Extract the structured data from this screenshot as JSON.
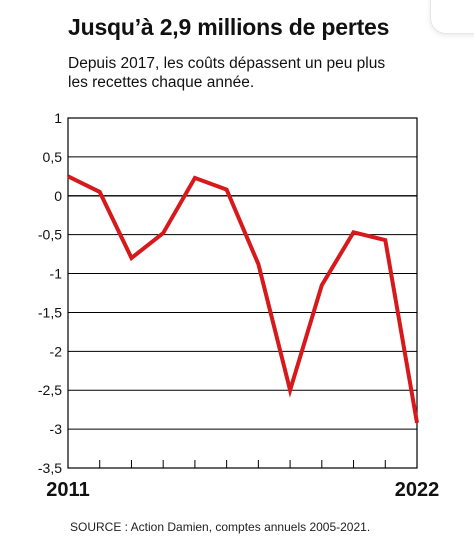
{
  "title": "Jusqu’à 2,9 millions de pertes",
  "subtitle": "Depuis 2017, les coûts dépassent un peu plus les recettes chaque année.",
  "source": "SOURCE : Action Damien, comptes annuels 2005-2021.",
  "colors": {
    "line": "#d7191c",
    "grid": "#000000",
    "text": "#111111"
  },
  "chart_data": {
    "type": "line",
    "title": "Jusqu’à 2,9 millions de pertes",
    "subtitle": "Depuis 2017, les coûts dépassent un peu plus les recettes chaque année.",
    "xlabel": "",
    "ylabel": "",
    "x_start_label": "2011",
    "x_end_label": "2022",
    "x": [
      2011,
      2012,
      2013,
      2014,
      2015,
      2016,
      2017,
      2018,
      2019,
      2020,
      2021,
      2022
    ],
    "series": [
      {
        "values": [
          0.25,
          0.05,
          -0.8,
          -0.48,
          0.23,
          0.08,
          -0.88,
          -2.5,
          -1.15,
          -0.47,
          -0.57,
          -2.92
        ]
      }
    ],
    "ylim": [
      -3.5,
      1
    ],
    "yticks": [
      1,
      0.5,
      0,
      -0.5,
      -1,
      -1.5,
      -2,
      -2.5,
      -3,
      -3.5
    ],
    "ytick_labels": [
      "1",
      "0,5",
      "0",
      "-0,5",
      "-1",
      "-1,5",
      "-2",
      "-2,5",
      "-3",
      "-3,5"
    ],
    "grid": true
  }
}
